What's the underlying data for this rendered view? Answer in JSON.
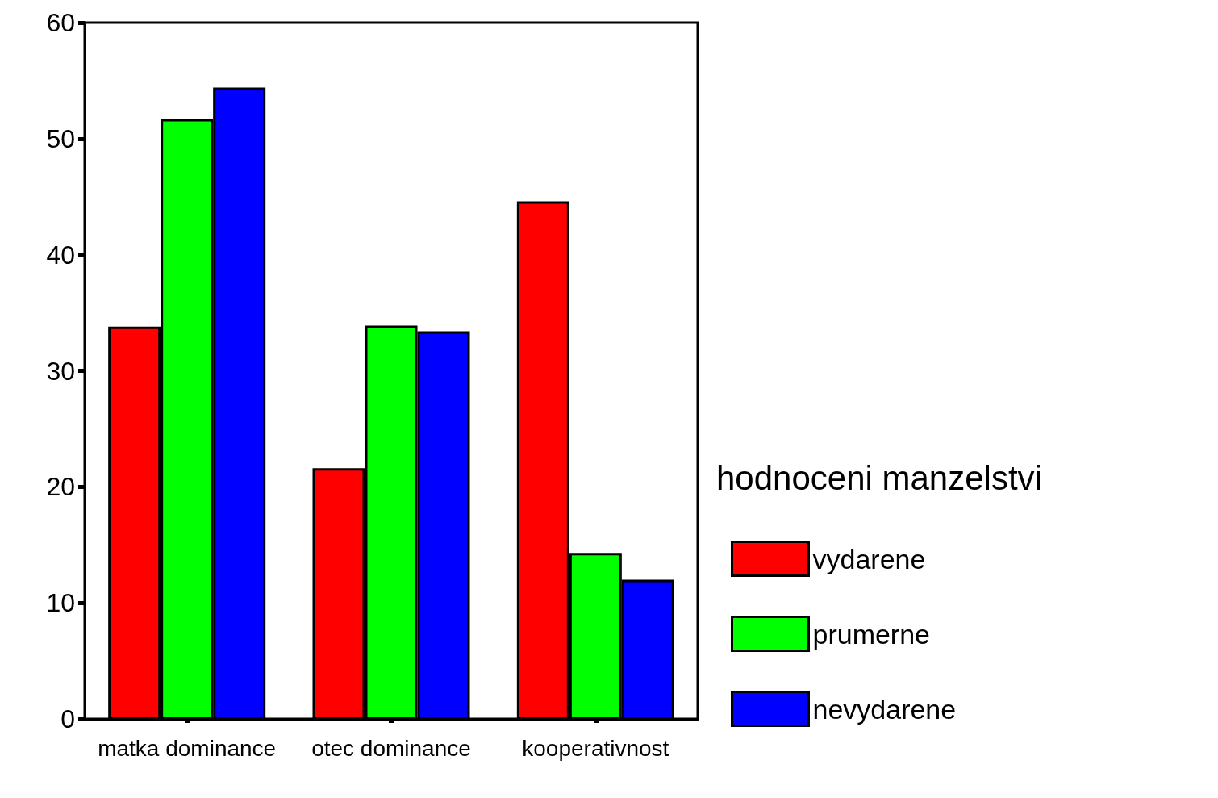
{
  "chart_data": {
    "type": "bar",
    "categories": [
      "matka dominance",
      "otec dominance",
      "kooperativnost"
    ],
    "series": [
      {
        "name": "vydarene",
        "color": "#ff0000",
        "values": [
          33.8,
          21.6,
          44.6
        ]
      },
      {
        "name": "prumerne",
        "color": "#00ff00",
        "values": [
          51.7,
          33.9,
          14.3
        ]
      },
      {
        "name": "nevydarene",
        "color": "#0000ff",
        "values": [
          54.4,
          33.4,
          12.0
        ]
      }
    ],
    "legend_title": "hodnoceni manzelstvi",
    "legend": "right",
    "grid": false,
    "ylim": [
      0,
      60
    ],
    "yticks": [
      0,
      10,
      20,
      30,
      40,
      50,
      60
    ]
  }
}
